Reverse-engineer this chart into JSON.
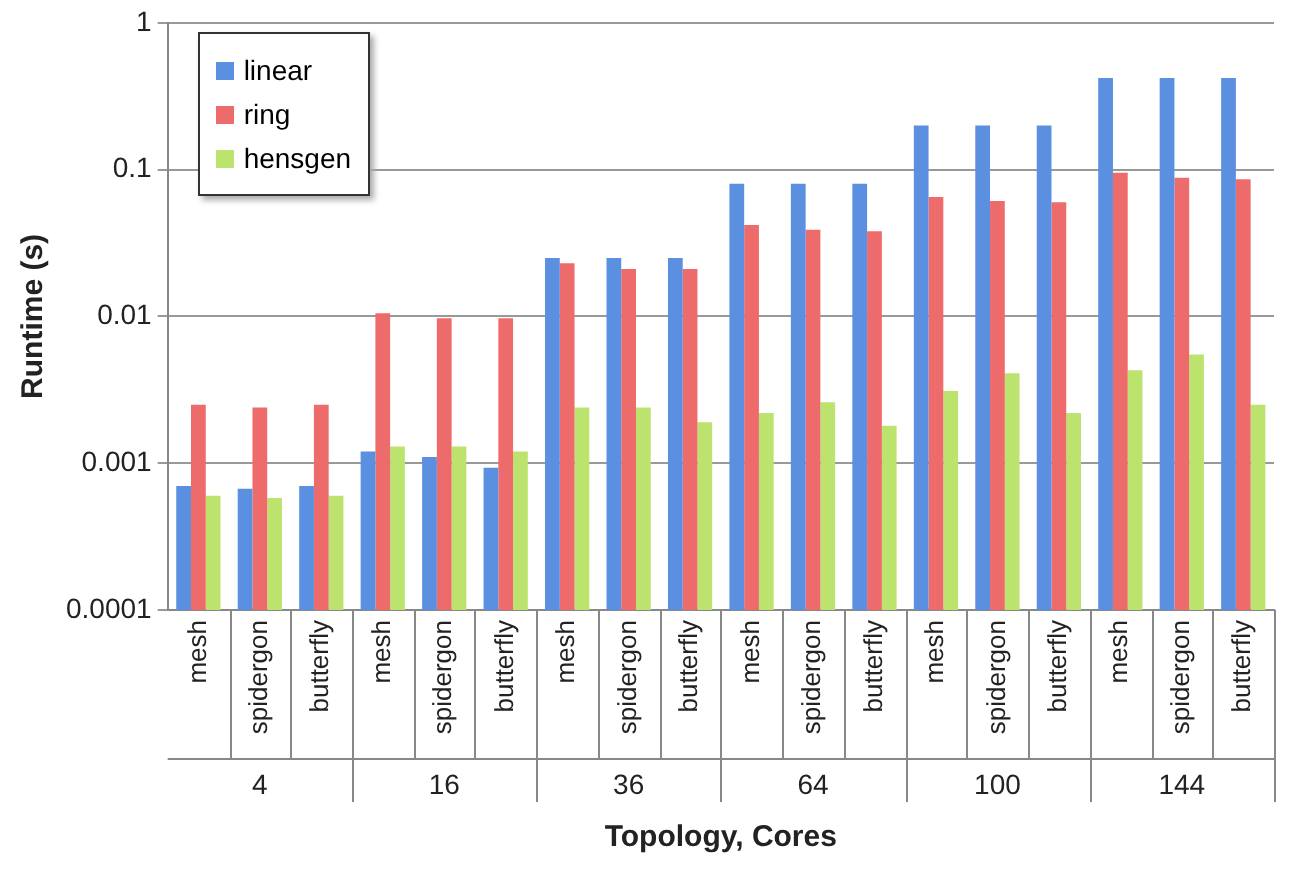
{
  "chart_data": {
    "type": "bar",
    "xlabel": "Topology, Cores",
    "ylabel": "Runtime (s)",
    "categories": [
      "mesh",
      "spidergon",
      "butterfly",
      "mesh",
      "spidergon",
      "butterfly",
      "mesh",
      "spidergon",
      "butterfly",
      "mesh",
      "spidergon",
      "butterfly",
      "mesh",
      "spidergon",
      "butterfly",
      "mesh",
      "spidergon",
      "butterfly"
    ],
    "annotations": [
      "4",
      "16",
      "36",
      "64",
      "100",
      "144"
    ],
    "series": [
      {
        "name": "linear",
        "color": "#5b8fe0",
        "values": [
          0.0007,
          0.00067,
          0.0007,
          0.0012,
          0.0011,
          0.00093,
          0.025,
          0.025,
          0.025,
          0.08,
          0.08,
          0.08,
          0.2,
          0.2,
          0.2,
          0.42,
          0.42,
          0.42
        ]
      },
      {
        "name": "ring",
        "color": "#ee6b6b",
        "values": [
          0.0025,
          0.0024,
          0.0025,
          0.0105,
          0.0097,
          0.0097,
          0.023,
          0.021,
          0.021,
          0.042,
          0.039,
          0.038,
          0.065,
          0.061,
          0.06,
          0.095,
          0.088,
          0.086
        ]
      },
      {
        "name": "hensgen",
        "color": "#bde36f",
        "values": [
          0.0006,
          0.00058,
          0.0006,
          0.0013,
          0.0013,
          0.0012,
          0.0024,
          0.0024,
          0.0019,
          0.0022,
          0.0026,
          0.0018,
          0.0031,
          0.0041,
          0.0022,
          0.0043,
          0.0055,
          0.0025
        ]
      }
    ],
    "log": "y",
    "ylim": [
      0.0001,
      1
    ],
    "yticks": [
      0.0001,
      0.001,
      0.01,
      0.1,
      1
    ],
    "grid": "y",
    "legend": "top left"
  }
}
